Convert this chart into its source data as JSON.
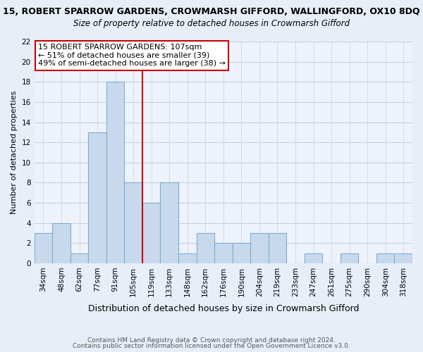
{
  "title_top": "15, ROBERT SPARROW GARDENS, CROWMARSH GIFFORD, WALLINGFORD, OX10 8DQ",
  "title_sub": "Size of property relative to detached houses in Crowmarsh Gifford",
  "xlabel": "Distribution of detached houses by size in Crowmarsh Gifford",
  "ylabel": "Number of detached properties",
  "bin_labels": [
    "34sqm",
    "48sqm",
    "62sqm",
    "77sqm",
    "91sqm",
    "105sqm",
    "119sqm",
    "133sqm",
    "148sqm",
    "162sqm",
    "176sqm",
    "190sqm",
    "204sqm",
    "219sqm",
    "233sqm",
    "247sqm",
    "261sqm",
    "275sqm",
    "290sqm",
    "304sqm",
    "318sqm"
  ],
  "bar_heights": [
    3,
    4,
    1,
    13,
    18,
    8,
    6,
    8,
    1,
    3,
    2,
    2,
    3,
    3,
    0,
    1,
    0,
    1,
    0,
    1,
    1
  ],
  "bar_color": "#c8d9ee",
  "bar_edge_color": "#7bafd4",
  "vline_x_index": 5,
  "vline_color": "#cc0000",
  "ylim": [
    0,
    22
  ],
  "yticks": [
    0,
    2,
    4,
    6,
    8,
    10,
    12,
    14,
    16,
    18,
    20,
    22
  ],
  "annotation_title": "15 ROBERT SPARROW GARDENS: 107sqm",
  "annotation_line1": "← 51% of detached houses are smaller (39)",
  "annotation_line2": "49% of semi-detached houses are larger (38) →",
  "box_facecolor": "#ffffff",
  "box_edgecolor": "#cc0000",
  "footer1": "Contains HM Land Registry data © Crown copyright and database right 2024.",
  "footer2": "Contains public sector information licensed under the Open Government Licence v3.0.",
  "bg_color": "#e8eef8",
  "plot_bg_color": "#edf2fb",
  "grid_color": "#c8d0e0",
  "title_fontsize": 9,
  "subtitle_fontsize": 8.5,
  "ylabel_fontsize": 8,
  "xlabel_fontsize": 9,
  "tick_fontsize": 7.5,
  "annotation_fontsize": 8,
  "footer_fontsize": 6.5
}
